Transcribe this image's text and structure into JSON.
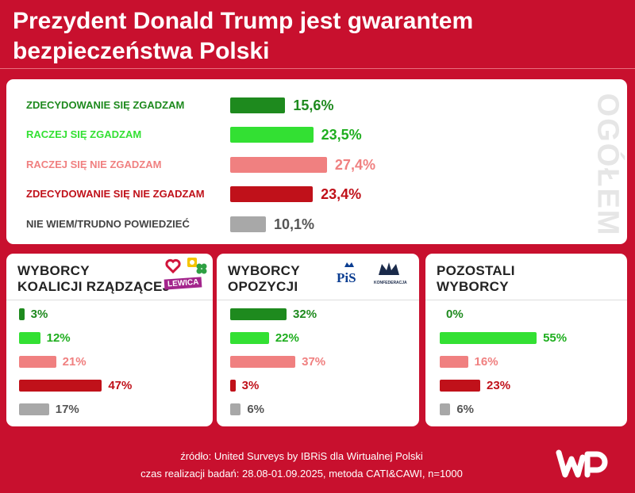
{
  "title": "Prezydent Donald Trump jest gwarantem bezpieczeństwa Polski",
  "colors": {
    "strong_agree": "#1e8a1e",
    "agree": "#33e033",
    "disagree": "#f08080",
    "strong_disagree": "#c0111a",
    "dont_know": "#a8a8a8",
    "background": "#c8102e"
  },
  "main": {
    "side_label": "OGÓŁEM",
    "rows": [
      {
        "label": "ZDECYDOWANIE SIĘ ZGADZAM",
        "pct_text": "15,6%"
      },
      {
        "label": "RACZEJ SIĘ ZGADZAM",
        "pct_text": "23,5%"
      },
      {
        "label": "RACZEJ SIĘ NIE ZGADZAM",
        "pct_text": "27,4%"
      },
      {
        "label": "ZDECYDOWANIE SIĘ NIE ZGADZAM",
        "pct_text": "23,4%"
      },
      {
        "label": "NIE WIEM/TRUDNO POWIEDZIEĆ",
        "pct_text": "10,1%"
      }
    ]
  },
  "groups": [
    {
      "title_line1": "WYBORCY",
      "title_line2": "KOALICJI RZĄDZĄCEJ",
      "logos": [
        "heart-icon",
        "clover-icon",
        "LEWICA"
      ],
      "pct_texts": [
        "3%",
        "12%",
        "21%",
        "47%",
        "17%"
      ]
    },
    {
      "title_line1": "WYBORCY",
      "title_line2": "OPOZYCJI",
      "logos": [
        "PiS",
        "KONFEDERACJA"
      ],
      "pct_texts": [
        "32%",
        "22%",
        "37%",
        "3%",
        "6%"
      ]
    },
    {
      "title_line1": "POZOSTALI",
      "title_line2": "WYBORCY",
      "logos": [],
      "pct_texts": [
        "0%",
        "55%",
        "16%",
        "23%",
        "6%"
      ]
    }
  ],
  "footer": {
    "source": "źródło: United Surveys by IBRiS dla Wirtualnej Polski",
    "method": "czas realizacji badań: 28.08-01.09.2025, metoda CATI&CAWI, n=1000"
  },
  "chart_data": [
    {
      "type": "bar",
      "title": "Prezydent Donald Trump jest gwarantem bezpieczeństwa Polski",
      "series_name": "OGÓŁEM",
      "categories": [
        "ZDECYDOWANIE SIĘ ZGADZAM",
        "RACZEJ SIĘ ZGADZAM",
        "RACZEJ SIĘ NIE ZGADZAM",
        "ZDECYDOWANIE SIĘ NIE ZGADZAM",
        "NIE WIEM/TRUDNO POWIEDZIEĆ"
      ],
      "values": [
        15.6,
        23.5,
        27.4,
        23.4,
        10.1
      ],
      "xlabel": "",
      "ylabel": "%",
      "ylim": [
        0,
        30
      ]
    },
    {
      "type": "bar",
      "title": "WYBORCY KOALICJI RZĄDZĄCEJ",
      "categories": [
        "ZDECYDOWANIE SIĘ ZGADZAM",
        "RACZEJ SIĘ ZGADZAM",
        "RACZEJ SIĘ NIE ZGADZAM",
        "ZDECYDOWANIE SIĘ NIE ZGADZAM",
        "NIE WIEM/TRUDNO POWIEDZIEĆ"
      ],
      "values": [
        3,
        12,
        21,
        47,
        17
      ],
      "ylim": [
        0,
        60
      ]
    },
    {
      "type": "bar",
      "title": "WYBORCY OPOZYCJI",
      "categories": [
        "ZDECYDOWANIE SIĘ ZGADZAM",
        "RACZEJ SIĘ ZGADZAM",
        "RACZEJ SIĘ NIE ZGADZAM",
        "ZDECYDOWANIE SIĘ NIE ZGADZAM",
        "NIE WIEM/TRUDNO POWIEDZIEĆ"
      ],
      "values": [
        32,
        22,
        37,
        3,
        6
      ],
      "ylim": [
        0,
        60
      ]
    },
    {
      "type": "bar",
      "title": "POZOSTALI WYBORCY",
      "categories": [
        "ZDECYDOWANIE SIĘ ZGADZAM",
        "RACZEJ SIĘ ZGADZAM",
        "RACZEJ SIĘ NIE ZGADZAM",
        "ZDECYDOWANIE SIĘ NIE ZGADZAM",
        "NIE WIEM/TRUDNO POWIEDZIEĆ"
      ],
      "values": [
        0,
        55,
        16,
        23,
        6
      ],
      "ylim": [
        0,
        60
      ]
    }
  ]
}
